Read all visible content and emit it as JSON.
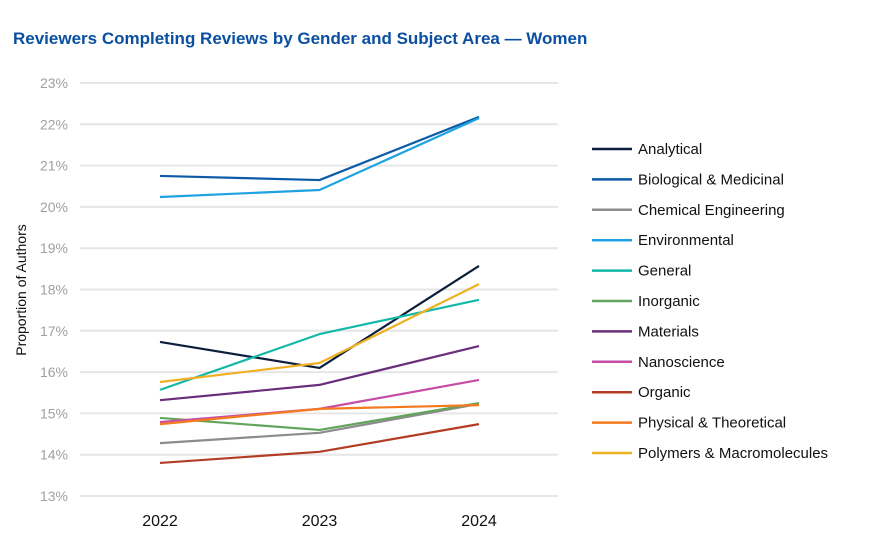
{
  "chart_data": {
    "type": "line",
    "title": "Reviewers Completing Reviews by Gender and Subject Area — Women",
    "xlabel": "",
    "ylabel": "Proportion of Authors",
    "categories": [
      "2022",
      "2023",
      "2024"
    ],
    "ylim": [
      13,
      23
    ],
    "yticks": [
      "13%",
      "14%",
      "15%",
      "16%",
      "17%",
      "18%",
      "19%",
      "20%",
      "21%",
      "22%",
      "23%"
    ],
    "grid": true,
    "legend": "right",
    "series": [
      {
        "name": "Analytical",
        "color": "#0d1f3c",
        "values": [
          16.73,
          16.1,
          18.57
        ]
      },
      {
        "name": "Biological & Medicinal",
        "color": "#0d5aa7",
        "values": [
          20.75,
          20.65,
          22.18
        ]
      },
      {
        "name": "Chemical Engineering",
        "color": "#8c8c8c",
        "values": [
          14.28,
          14.53,
          15.23
        ]
      },
      {
        "name": "Environmental",
        "color": "#1ea3e0",
        "values": [
          20.24,
          20.41,
          22.15
        ]
      },
      {
        "name": "General",
        "color": "#14b8a8",
        "values": [
          15.57,
          16.92,
          17.75
        ]
      },
      {
        "name": "Inorganic",
        "color": "#62a55a",
        "values": [
          14.89,
          14.6,
          15.25
        ]
      },
      {
        "name": "Materials",
        "color": "#6a2e7a",
        "values": [
          15.32,
          15.69,
          16.63
        ]
      },
      {
        "name": "Nanoscience",
        "color": "#c64ca5",
        "values": [
          14.79,
          15.11,
          15.81
        ]
      },
      {
        "name": "Organic",
        "color": "#b23d24",
        "values": [
          13.8,
          14.07,
          14.74
        ]
      },
      {
        "name": "Physical & Theoretical",
        "color": "#f47a20",
        "values": [
          14.74,
          15.11,
          15.2
        ]
      },
      {
        "name": "Polymers & Macromolecules",
        "color": "#f0b024",
        "values": [
          15.76,
          16.22,
          18.13
        ]
      }
    ]
  }
}
